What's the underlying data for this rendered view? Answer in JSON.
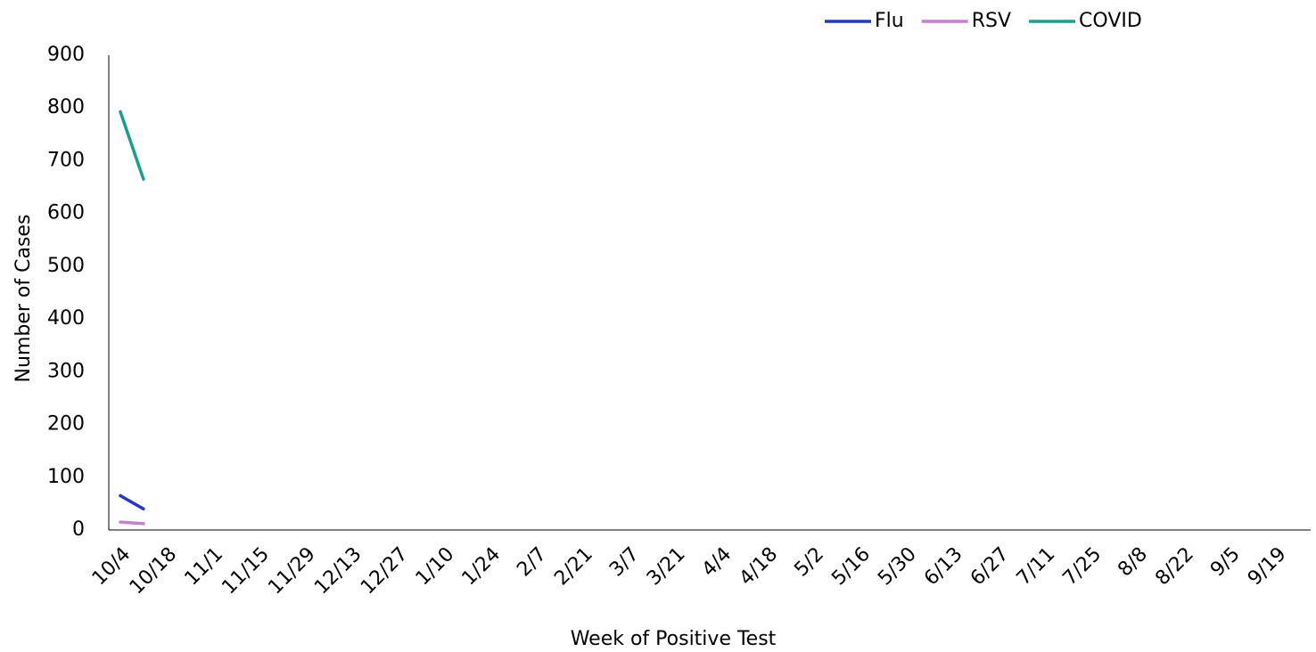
{
  "chart_data": {
    "type": "line",
    "x_label": "Week of Positive Test",
    "y_label": "Number of Cases",
    "categories": [
      "10/4",
      null,
      "10/18",
      null,
      "11/1",
      null,
      "11/15",
      null,
      "11/29",
      null,
      "12/13",
      null,
      "12/27",
      null,
      "1/10",
      null,
      "1/24",
      null,
      "2/7",
      null,
      "2/21",
      null,
      "3/7",
      null,
      "3/21",
      null,
      "4/4",
      null,
      "4/18",
      null,
      "5/2",
      null,
      "5/16",
      null,
      "5/30",
      null,
      "6/13",
      null,
      "6/27",
      null,
      "7/11",
      null,
      "7/25",
      null,
      "8/8",
      null,
      "8/22",
      null,
      "9/5",
      null,
      "9/19",
      null
    ],
    "series": [
      {
        "name": "Flu",
        "color": "#2536c9",
        "values": [
          65,
          40,
          null,
          null,
          null,
          null,
          null,
          null,
          null,
          null,
          null,
          null,
          null,
          null,
          null,
          null,
          null,
          null,
          null,
          null,
          null,
          null,
          null,
          null,
          null,
          null,
          null,
          null,
          null,
          null,
          null,
          null,
          null,
          null,
          null,
          null,
          null,
          null,
          null,
          null,
          null,
          null,
          null,
          null,
          null,
          null,
          null,
          null,
          null,
          null,
          null,
          null
        ]
      },
      {
        "name": "RSV",
        "color": "#c77fd1",
        "values": [
          15,
          12,
          null,
          null,
          null,
          null,
          null,
          null,
          null,
          null,
          null,
          null,
          null,
          null,
          null,
          null,
          null,
          null,
          null,
          null,
          null,
          null,
          null,
          null,
          null,
          null,
          null,
          null,
          null,
          null,
          null,
          null,
          null,
          null,
          null,
          null,
          null,
          null,
          null,
          null,
          null,
          null,
          null,
          null,
          null,
          null,
          null,
          null,
          null,
          null,
          null,
          null
        ]
      },
      {
        "name": "COVID",
        "color": "#1a9e8f",
        "values": [
          793,
          665,
          null,
          null,
          null,
          null,
          null,
          null,
          null,
          null,
          null,
          null,
          null,
          null,
          null,
          null,
          null,
          null,
          null,
          null,
          null,
          null,
          null,
          null,
          null,
          null,
          null,
          null,
          null,
          null,
          null,
          null,
          null,
          null,
          null,
          null,
          null,
          null,
          null,
          null,
          null,
          null,
          null,
          null,
          null,
          null,
          null,
          null,
          null,
          null,
          null,
          null
        ]
      }
    ],
    "ylim": [
      0,
      900
    ],
    "yticks": [
      0,
      100,
      200,
      300,
      400,
      500,
      600,
      700,
      800,
      900
    ],
    "legend": "top"
  }
}
